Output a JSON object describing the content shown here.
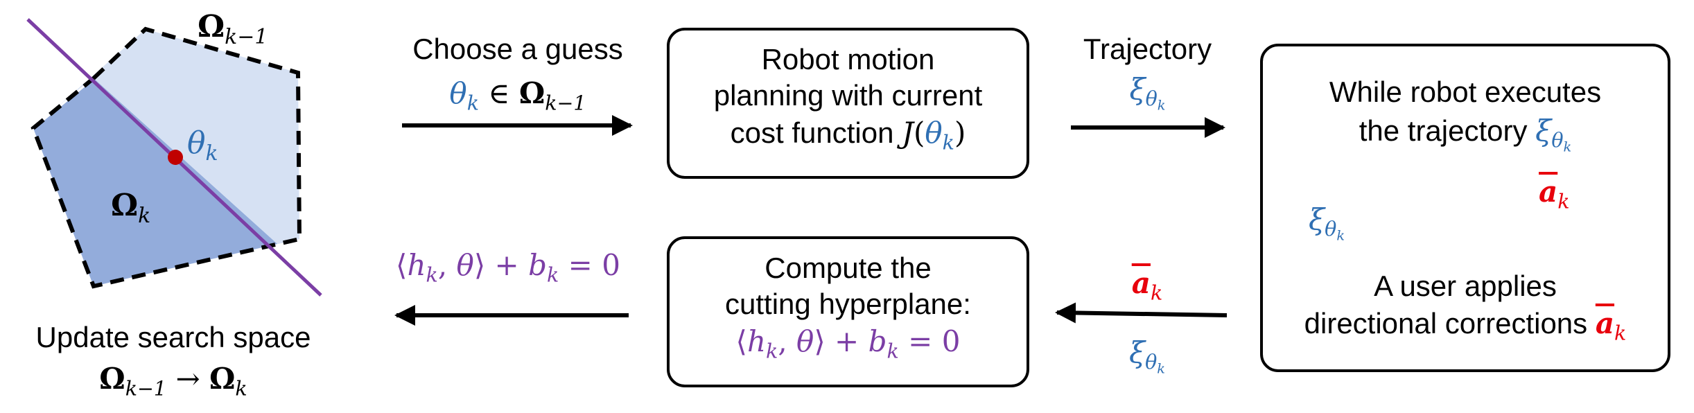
{
  "colors": {
    "blue": "#2f6fb3",
    "purple": "#7b3ea5",
    "red": "#e8000c",
    "light_region": "#d6e1f3",
    "dark_region": "#93acdb",
    "point": "#c00000"
  },
  "polygon": {
    "prev_region": {
      "sym": "Ω",
      "sub": "k−1"
    },
    "curr_region": {
      "sym": "Ω",
      "sub": "k"
    },
    "point_label": {
      "sym": "θ",
      "sub": "k"
    }
  },
  "update": {
    "text": "Update search space",
    "from": {
      "sym": "Ω",
      "sub": "k−1"
    },
    "arrow": "→",
    "to": {
      "sym": "Ω",
      "sub": "k"
    }
  },
  "guess": {
    "text": "Choose a guess",
    "theta": "θ",
    "theta_sub": "k",
    "in": "∈",
    "omega": "Ω",
    "omega_sub": "k−1"
  },
  "planning_box": {
    "line1": "Robot motion",
    "line2": "planning with current",
    "line3_prefix": "cost function ",
    "func": "J",
    "arg_theta": "θ",
    "arg_sub": "k"
  },
  "trajectory": {
    "text": "Trajectory",
    "xi": "ξ",
    "xi_sub": "θ",
    "xi_subsub": "k"
  },
  "execution_box": {
    "line1": "While robot executes",
    "line2_prefix": "the trajectory ",
    "xi": "ξ",
    "xi_sub": "θ",
    "xi_subsub": "k",
    "curve_label": {
      "xi": "ξ",
      "sub": "θ",
      "subsub": "k"
    },
    "correction_label": {
      "a": "a",
      "sub": "k"
    },
    "line3": "A user applies",
    "line4_prefix": "directional corrections ",
    "a": "a",
    "a_sub": "k"
  },
  "feedback": {
    "a": "a",
    "a_sub": "k",
    "xi": "ξ",
    "xi_sub": "θ",
    "xi_subsub": "k"
  },
  "cutting_box": {
    "line1": "Compute the",
    "line2": "cutting hyperplane:",
    "equation": {
      "lang": "⟨",
      "h": "h",
      "h_sub": "k",
      "comma": ", ",
      "theta": "θ",
      "rang": "⟩",
      "plus": " + ",
      "b": "b",
      "b_sub": "k",
      "eq": " = 0"
    }
  },
  "hyperplane_eq": {
    "lang": "⟨",
    "h": "h",
    "h_sub": "k",
    "comma": ", ",
    "theta": "θ",
    "rang": "⟩",
    "plus": " + ",
    "b": "b",
    "b_sub": "k",
    "eq": " = 0"
  }
}
